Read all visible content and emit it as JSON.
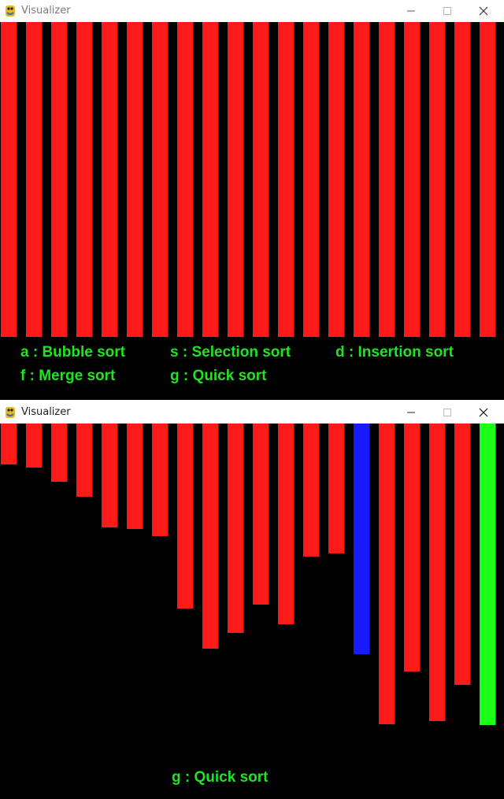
{
  "windows": [
    {
      "title": "Visualizer",
      "controls": [
        "minimize",
        "maximize",
        "close"
      ],
      "chart_data": {
        "type": "bar",
        "values": [
          400,
          400,
          400,
          400,
          400,
          400,
          400,
          400,
          400,
          400,
          400,
          400,
          400,
          400,
          400,
          400,
          400,
          400,
          400,
          400
        ],
        "bar_colors": [
          "#ff1a1a",
          "#ff1a1a",
          "#ff1a1a",
          "#ff1a1a",
          "#ff1a1a",
          "#ff1a1a",
          "#ff1a1a",
          "#ff1a1a",
          "#ff1a1a",
          "#ff1a1a",
          "#ff1a1a",
          "#ff1a1a",
          "#ff1a1a",
          "#ff1a1a",
          "#ff1a1a",
          "#ff1a1a",
          "#ff1a1a",
          "#ff1a1a",
          "#ff1a1a",
          "#ff1a1a"
        ],
        "ylim": [
          0,
          400
        ]
      },
      "menu": [
        {
          "key": "a",
          "label": "a : Bubble sort"
        },
        {
          "key": "s",
          "label": "s : Selection sort"
        },
        {
          "key": "d",
          "label": "d : Insertion sort"
        },
        {
          "key": "f",
          "label": "f : Merge sort"
        },
        {
          "key": "g",
          "label": "g : Quick sort"
        }
      ]
    },
    {
      "title": "Visualizer",
      "controls": [
        "minimize",
        "maximize",
        "close"
      ],
      "chart_data": {
        "type": "bar",
        "values": [
          52,
          56,
          74,
          93,
          132,
          134,
          143,
          235,
          286,
          266,
          230,
          255,
          169,
          165,
          293,
          382,
          315,
          378,
          332,
          383
        ],
        "bar_colors": [
          "#ff1a1a",
          "#ff1a1a",
          "#ff1a1a",
          "#ff1a1a",
          "#ff1a1a",
          "#ff1a1a",
          "#ff1a1a",
          "#ff1a1a",
          "#ff1a1a",
          "#ff1a1a",
          "#ff1a1a",
          "#ff1a1a",
          "#ff1a1a",
          "#ff1a1a",
          "#1a1aff",
          "#ff1a1a",
          "#ff1a1a",
          "#ff1a1a",
          "#ff1a1a",
          "#1aff1a"
        ],
        "ylim": [
          0,
          400
        ]
      },
      "status": "g : Quick sort"
    }
  ],
  "colors": {
    "bar_default": "#ff1a1a",
    "bar_compare": "#1a1aff",
    "bar_pivot": "#1aff1a",
    "legend_text": "#1ee61e",
    "background": "#000000"
  }
}
